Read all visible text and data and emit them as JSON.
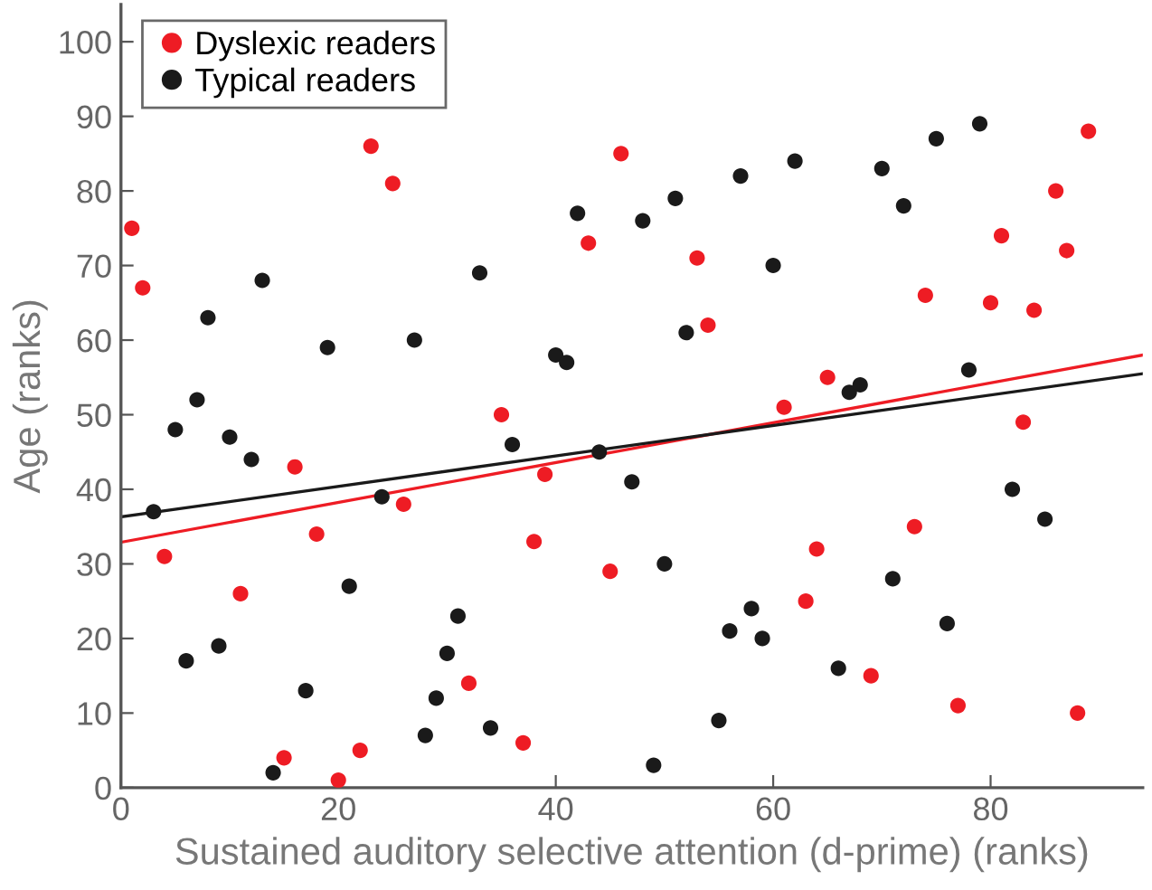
{
  "chart_data": {
    "type": "scatter",
    "xlabel": "Sustained auditory selective attention (d-prime) (ranks)",
    "ylabel": "Age (ranks)",
    "xlim": [
      0,
      94
    ],
    "ylim": [
      0,
      105
    ],
    "xticks": [
      0,
      20,
      40,
      60,
      80
    ],
    "yticks": [
      0,
      10,
      20,
      30,
      40,
      50,
      60,
      70,
      80,
      90,
      100
    ],
    "grid": false,
    "legend": "top left",
    "series": [
      {
        "name": "Dyslexic readers",
        "color": "#ee1c24",
        "marker": "circle",
        "x": [
          1,
          2,
          4,
          11,
          15,
          16,
          18,
          20,
          22,
          23,
          25,
          26,
          32,
          35,
          37,
          38,
          39,
          43,
          45,
          46,
          53,
          54,
          61,
          63,
          64,
          65,
          69,
          73,
          74,
          77,
          80,
          81,
          83,
          84,
          86,
          87,
          88,
          89
        ],
        "values": [
          75,
          67,
          31,
          26,
          4,
          43,
          34,
          1,
          5,
          86,
          81,
          38,
          14,
          50,
          6,
          33,
          42,
          73,
          29,
          85,
          71,
          62,
          51,
          25,
          32,
          55,
          15,
          35,
          66,
          11,
          65,
          74,
          49,
          64,
          80,
          72,
          10,
          88
        ]
      },
      {
        "name": "Typical readers",
        "color": "#1a1a1a",
        "marker": "circle",
        "x": [
          3,
          5,
          6,
          7,
          8,
          9,
          10,
          12,
          13,
          14,
          17,
          19,
          21,
          24,
          27,
          28,
          29,
          30,
          31,
          33,
          34,
          36,
          40,
          41,
          42,
          44,
          47,
          48,
          49,
          50,
          51,
          52,
          55,
          56,
          57,
          58,
          59,
          60,
          62,
          66,
          67,
          68,
          70,
          71,
          72,
          75,
          76,
          78,
          79,
          82,
          85
        ],
        "values": [
          37,
          48,
          17,
          52,
          63,
          19,
          47,
          44,
          68,
          2,
          13,
          59,
          27,
          39,
          60,
          7,
          12,
          18,
          23,
          69,
          8,
          46,
          58,
          57,
          77,
          45,
          41,
          76,
          3,
          30,
          79,
          61,
          9,
          21,
          82,
          24,
          20,
          70,
          84,
          16,
          53,
          54,
          83,
          28,
          78,
          87,
          22,
          56,
          89,
          40,
          36
        ]
      },
      {
        "type": "line",
        "color": "#ee1c24",
        "marker": "none",
        "x": [
          0,
          94
        ],
        "values": [
          32.9,
          58.0
        ]
      },
      {
        "type": "line",
        "color": "#1a1a1a",
        "marker": "none",
        "x": [
          0,
          94
        ],
        "values": [
          36.3,
          55.5
        ]
      }
    ]
  }
}
